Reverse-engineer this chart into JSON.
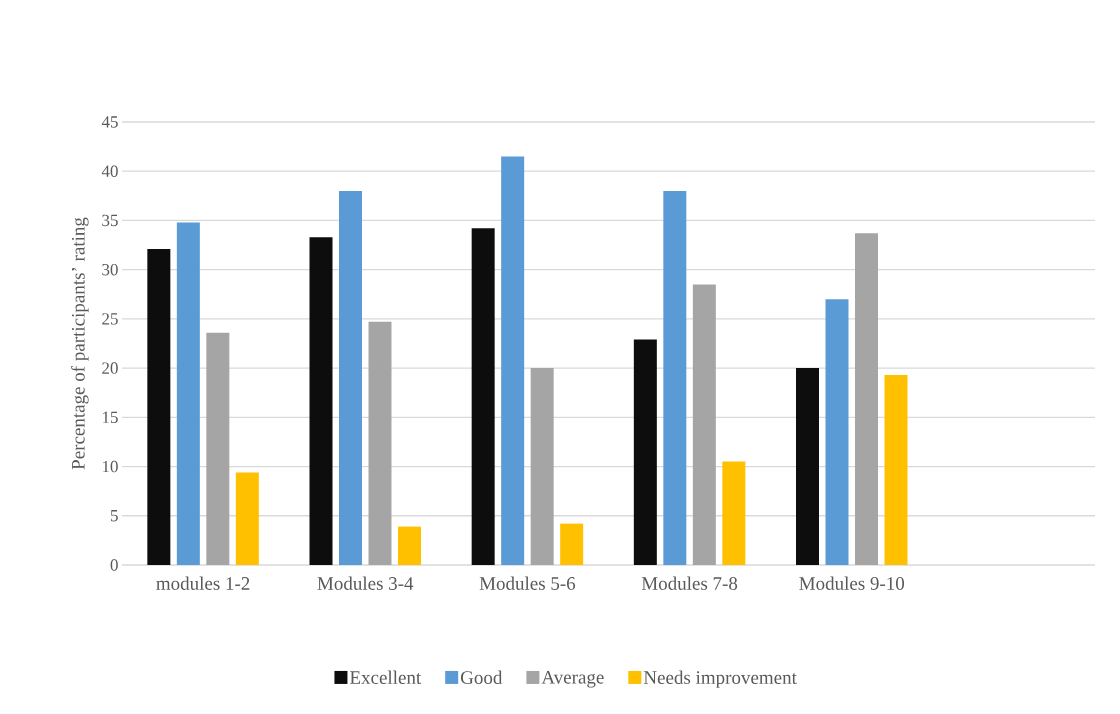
{
  "chart_data": {
    "type": "bar",
    "ylabel": "Percentage of participants’ rating",
    "categories": [
      "modules 1-2",
      "Modules 3-4",
      "Modules 5-6",
      "Modules 7-8",
      "Modules 9-10",
      null
    ],
    "series": [
      {
        "name": "Excellent",
        "color": "#0d0d0d",
        "values": [
          32.1,
          33.3,
          34.2,
          22.9,
          20.0,
          null
        ]
      },
      {
        "name": "Good",
        "color": "#5b9bd5",
        "values": [
          34.8,
          38.0,
          41.5,
          38.0,
          27.0,
          null
        ]
      },
      {
        "name": "Average",
        "color": "#a5a5a5",
        "values": [
          23.6,
          24.7,
          20.0,
          28.5,
          33.7,
          null
        ]
      },
      {
        "name": "Needs improvement",
        "color": "#ffc000",
        "values": [
          9.4,
          3.9,
          4.2,
          10.5,
          19.3,
          null
        ]
      }
    ],
    "ylim": [
      0,
      45
    ],
    "yticks": [
      0,
      5,
      10,
      15,
      20,
      25,
      30,
      35,
      40,
      45
    ],
    "grid": "y",
    "legend": "bottom"
  }
}
